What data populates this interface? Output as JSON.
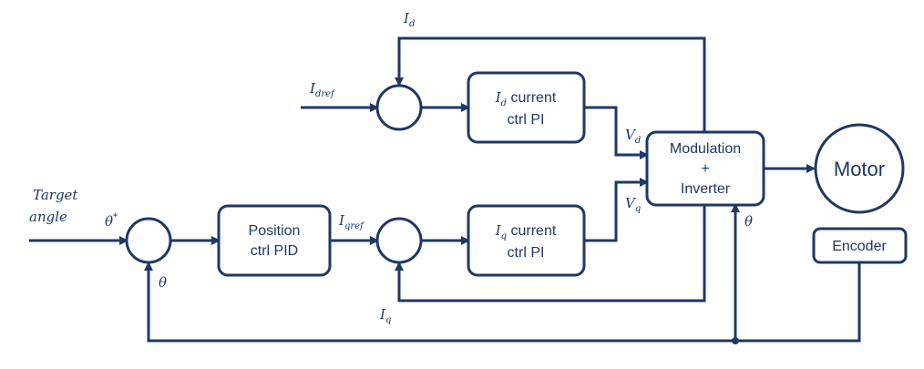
{
  "colors": {
    "stroke": "#1f3864",
    "background": "#ffffff"
  },
  "blocks": {
    "position_ctrl": {
      "line1": "Position",
      "line2": "ctrl PID"
    },
    "id_ctrl": {
      "symbol": "I",
      "sub": "d",
      "line1": " current",
      "line2": "ctrl PI"
    },
    "iq_ctrl": {
      "symbol": "I",
      "sub": "q",
      "line1": " current",
      "line2": "ctrl PI"
    },
    "modulation": {
      "line1": "Modulation",
      "line2": "+",
      "line3": "Inverter"
    },
    "motor": "Motor",
    "encoder": "Encoder"
  },
  "signals": {
    "target_angle": {
      "line1": "Target",
      "line2": "angle"
    },
    "theta_star": {
      "symbol": "θ",
      "sup": "*"
    },
    "theta_feedback": "θ",
    "theta_modulation": "θ",
    "id_feedback": {
      "symbol": "I",
      "sub": "d"
    },
    "id_ref": {
      "symbol": "I",
      "sub": "dref"
    },
    "iq_ref": {
      "symbol": "I",
      "sub": "qref"
    },
    "iq_feedback": {
      "symbol": "I",
      "sub": "q"
    },
    "vd": {
      "symbol": "V",
      "sub": "d"
    },
    "vq": {
      "symbol": "V",
      "sub": "q"
    }
  }
}
